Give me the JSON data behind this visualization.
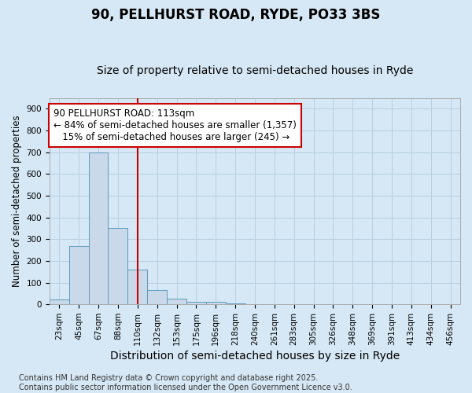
{
  "title": "90, PELLHURST ROAD, RYDE, PO33 3BS",
  "subtitle": "Size of property relative to semi-detached houses in Ryde",
  "xlabel": "Distribution of semi-detached houses by size in Ryde",
  "ylabel": "Number of semi-detached properties",
  "bar_labels": [
    "23sqm",
    "45sqm",
    "67sqm",
    "88sqm",
    "110sqm",
    "132sqm",
    "153sqm",
    "175sqm",
    "196sqm",
    "218sqm",
    "240sqm",
    "261sqm",
    "283sqm",
    "305sqm",
    "326sqm",
    "348sqm",
    "369sqm",
    "391sqm",
    "413sqm",
    "434sqm",
    "456sqm"
  ],
  "bar_values": [
    22,
    270,
    700,
    350,
    160,
    65,
    25,
    10,
    10,
    5,
    0,
    0,
    0,
    0,
    0,
    0,
    0,
    0,
    0,
    0,
    0
  ],
  "bar_color": "#c9d9ea",
  "bar_edgecolor": "#5b9abf",
  "red_line_x": 4.5,
  "annotation_line1": "90 PELLHURST ROAD: 113sqm",
  "annotation_line2": "← 84% of semi-detached houses are smaller (1,357)",
  "annotation_line3": "   15% of semi-detached houses are larger (245) →",
  "annotation_box_color": "#ffffff",
  "annotation_box_edgecolor": "#cc0000",
  "ylim": [
    0,
    950
  ],
  "yticks": [
    0,
    100,
    200,
    300,
    400,
    500,
    600,
    700,
    800,
    900
  ],
  "grid_color": "#b8cfe0",
  "background_color": "#d6e8f5",
  "footer": "Contains HM Land Registry data © Crown copyright and database right 2025.\nContains public sector information licensed under the Open Government Licence v3.0.",
  "title_fontsize": 12,
  "subtitle_fontsize": 10,
  "xlabel_fontsize": 10,
  "ylabel_fontsize": 8.5,
  "tick_fontsize": 7.5,
  "annotation_fontsize": 8.5,
  "footer_fontsize": 7
}
